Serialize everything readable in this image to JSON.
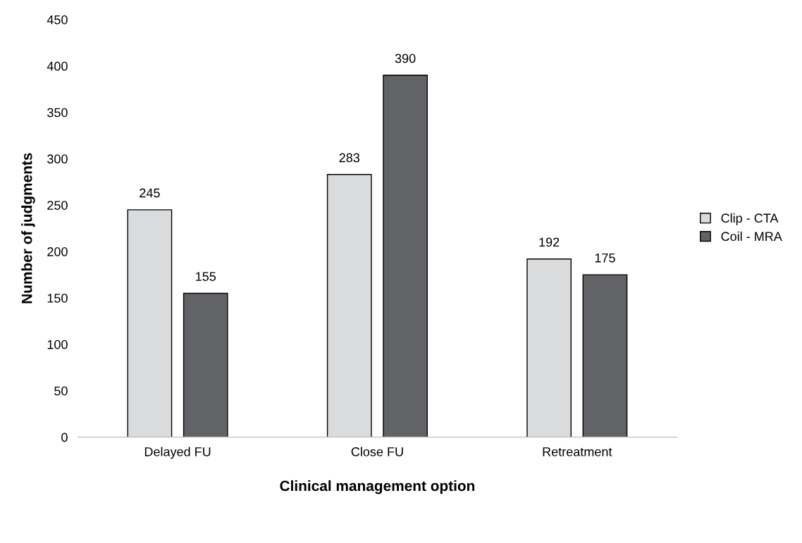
{
  "chart_data": {
    "type": "bar",
    "xlabel": "Clinical management option",
    "ylabel": "Number of judgments",
    "categories": [
      "Delayed FU",
      "Close FU",
      "Retreatment"
    ],
    "series": [
      {
        "name": "Clip - CTA",
        "color": "#dadbdd",
        "values": [
          245,
          283,
          192
        ]
      },
      {
        "name": "Coil - MRA",
        "color": "#626366",
        "values": [
          155,
          390,
          175
        ]
      }
    ],
    "ylim": [
      0,
      450
    ],
    "yticks": [
      0,
      50,
      100,
      150,
      200,
      250,
      300,
      350,
      400,
      450
    ],
    "grid": false,
    "legend": "right",
    "data_labels": true
  }
}
